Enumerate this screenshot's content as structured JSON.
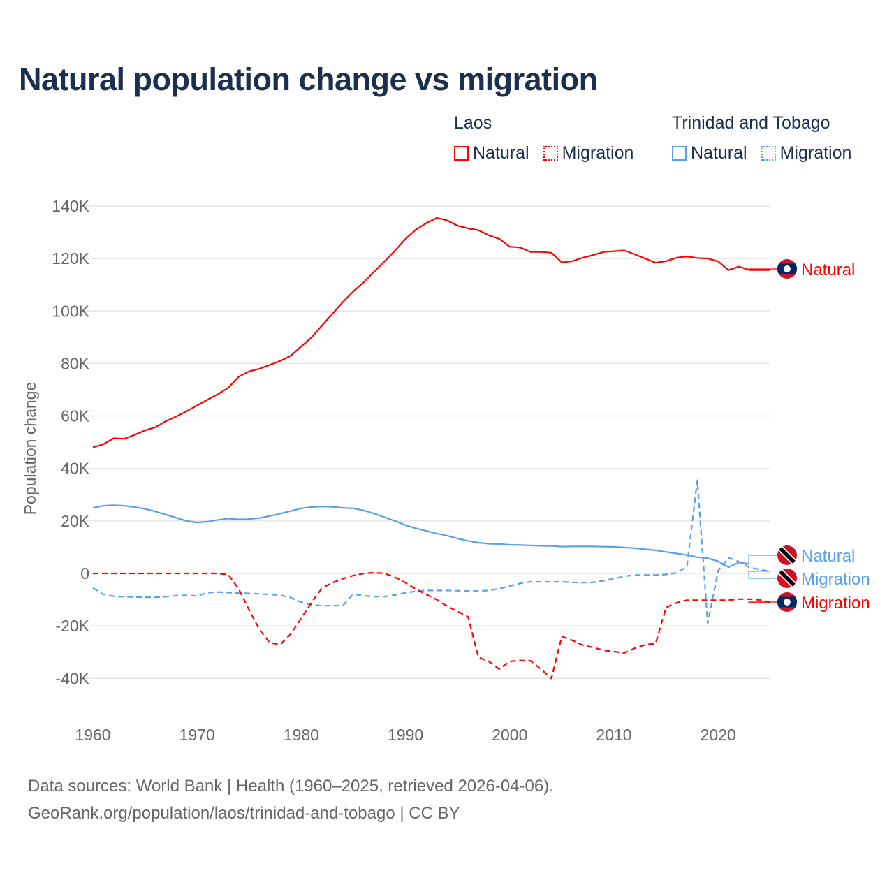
{
  "title": "Natural population change vs migration",
  "legend": {
    "groups": [
      {
        "name": "Laos",
        "color": "#ff0000",
        "items": [
          "Natural",
          "Migration"
        ]
      },
      {
        "name": "Trinidad and Tobago",
        "color": "#5aa0e6",
        "items": [
          "Natural",
          "Migration"
        ]
      }
    ]
  },
  "footer": {
    "line1": "Data sources: World Bank | Health (1960–2025, retrieved 2026-04-06).",
    "line2": "GeoRank.org/population/laos/trinidad-and-tobago | CC BY"
  },
  "chart_data": {
    "type": "line",
    "title": "Natural population change vs migration",
    "xlabel": "",
    "ylabel": "Population change",
    "xlim": [
      1960,
      2025
    ],
    "ylim": [
      -50000,
      145000
    ],
    "x_ticks": [
      1960,
      1970,
      1980,
      1990,
      2000,
      2010,
      2020
    ],
    "y_ticks": [
      -40000,
      -20000,
      0,
      20000,
      40000,
      60000,
      80000,
      100000,
      120000,
      140000
    ],
    "y_tick_labels": [
      "-40K",
      "-20K",
      "0",
      "20K",
      "40K",
      "60K",
      "80K",
      "100K",
      "120K",
      "140K"
    ],
    "grid": true,
    "legend_position": "top-right",
    "x_start": 1960,
    "series": [
      {
        "name": "Laos Natural",
        "label": "Natural",
        "country": "Laos",
        "color": "#ff0000",
        "dash": "solid",
        "values": [
          48000,
          49200,
          51500,
          51300,
          52800,
          54500,
          55700,
          58000,
          59800,
          61800,
          64000,
          66200,
          68300,
          70800,
          75000,
          77000,
          78000,
          79500,
          81000,
          83000,
          86500,
          90000,
          94500,
          99000,
          103500,
          107500,
          111000,
          115000,
          119000,
          123000,
          127500,
          131000,
          133500,
          135500,
          134500,
          132500,
          131500,
          130800,
          128800,
          127500,
          124500,
          124200,
          122500,
          122500,
          122200,
          118500,
          119000,
          120300,
          121300,
          122500,
          122800,
          123100,
          121600,
          120000,
          118400,
          119000,
          120300,
          120800,
          120200,
          120000,
          118900,
          115600,
          116900,
          115600,
          115600,
          115600
        ]
      },
      {
        "name": "Laos Migration",
        "label": "Migration",
        "country": "Laos",
        "color": "#ff0000",
        "dash": "dashed",
        "values": [
          0,
          0,
          0,
          0,
          0,
          0,
          0,
          0,
          0,
          0,
          0,
          0,
          0,
          -500,
          -6000,
          -14000,
          -21500,
          -26500,
          -27000,
          -23000,
          -17000,
          -11000,
          -5500,
          -3500,
          -2000,
          -800,
          0,
          300,
          0,
          -1500,
          -3500,
          -6000,
          -8000,
          -10000,
          -12500,
          -14500,
          -16500,
          -32000,
          -33500,
          -36500,
          -33500,
          -33200,
          -33300,
          -36500,
          -40000,
          -24000,
          -25500,
          -27300,
          -28200,
          -29300,
          -29800,
          -30300,
          -28500,
          -27200,
          -26700,
          -13000,
          -11200,
          -10200,
          -10200,
          -10200,
          -10200,
          -10200,
          -9800,
          -9800,
          -10100,
          -11000
        ]
      },
      {
        "name": "Trinidad and Tobago Natural",
        "label": "Natural",
        "country": "Trinidad and Tobago",
        "color": "#5aa0e6",
        "dash": "solid",
        "values": [
          25000,
          25800,
          26000,
          25800,
          25300,
          24600,
          23600,
          22400,
          21200,
          20000,
          19400,
          19700,
          20400,
          20900,
          20600,
          20700,
          21100,
          21900,
          22800,
          23800,
          24800,
          25300,
          25500,
          25400,
          25000,
          24800,
          24000,
          22800,
          21400,
          20000,
          18400,
          17200,
          16200,
          15200,
          14400,
          13300,
          12400,
          11700,
          11300,
          11200,
          10900,
          10800,
          10700,
          10500,
          10500,
          10200,
          10300,
          10300,
          10300,
          10200,
          10100,
          9900,
          9600,
          9200,
          8800,
          8200,
          7600,
          7000,
          6200,
          5800,
          4600,
          2400,
          4200,
          3600
        ]
      },
      {
        "name": "Trinidad and Tobago Migration",
        "label": "Migration",
        "country": "Trinidad and Tobago",
        "color": "#5aa0e6",
        "dash": "dashed",
        "values": [
          -5500,
          -8000,
          -8700,
          -8900,
          -9000,
          -9100,
          -9100,
          -8900,
          -8500,
          -8300,
          -8600,
          -7300,
          -7100,
          -7300,
          -7500,
          -7600,
          -7800,
          -8000,
          -8300,
          -9200,
          -11000,
          -12000,
          -12300,
          -12300,
          -12200,
          -7800,
          -8500,
          -8800,
          -8800,
          -8200,
          -7400,
          -6800,
          -6500,
          -6500,
          -6500,
          -6600,
          -6700,
          -6700,
          -6500,
          -5800,
          -4800,
          -3800,
          -3200,
          -3200,
          -3200,
          -3200,
          -3400,
          -3500,
          -3400,
          -2800,
          -2000,
          -1100,
          -600,
          -600,
          -600,
          -400,
          200,
          2500,
          35500,
          -19000,
          1000,
          6000,
          4500,
          2300,
          1500,
          800
        ]
      }
    ]
  }
}
